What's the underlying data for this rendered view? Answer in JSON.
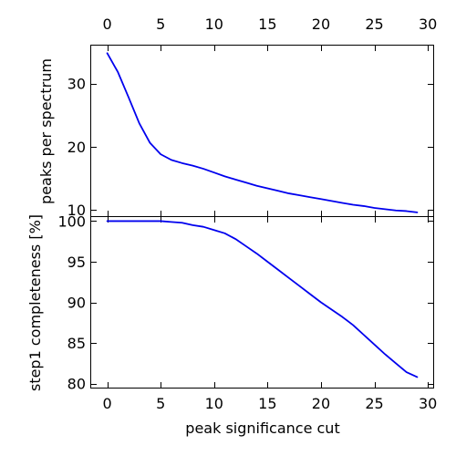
{
  "chart_data": [
    {
      "type": "line",
      "xlabel": "",
      "ylabel": "peaks per spectrum",
      "xlim": [
        -1.5,
        30.5
      ],
      "ylim": [
        9.0,
        36.0
      ],
      "xticks": [
        0,
        5,
        10,
        15,
        20,
        25,
        30
      ],
      "yticks": [
        10,
        20,
        30
      ],
      "xtick_labels_position": "top",
      "color": "#0000ee",
      "x": [
        0,
        1,
        2,
        3,
        4,
        5,
        6,
        7,
        8,
        9,
        10,
        11,
        12,
        13,
        14,
        15,
        16,
        17,
        18,
        19,
        20,
        21,
        22,
        23,
        24,
        25,
        26,
        27,
        28,
        29
      ],
      "y": [
        34.8,
        31.8,
        27.8,
        23.7,
        20.6,
        18.8,
        17.9,
        17.4,
        17.0,
        16.5,
        15.9,
        15.3,
        14.8,
        14.3,
        13.8,
        13.4,
        13.0,
        12.6,
        12.3,
        12.0,
        11.7,
        11.4,
        11.1,
        10.8,
        10.6,
        10.3,
        10.1,
        9.9,
        9.8,
        9.6
      ]
    },
    {
      "type": "line",
      "xlabel": "peak significance cut",
      "ylabel": "step1 completeness [%]",
      "xlim": [
        -1.5,
        30.5
      ],
      "ylim": [
        79.5,
        100.5
      ],
      "xticks": [
        0,
        5,
        10,
        15,
        20,
        25,
        30
      ],
      "yticks": [
        80,
        85,
        90,
        95,
        100
      ],
      "xtick_labels_position": "bottom",
      "color": "#0000ee",
      "x": [
        0,
        1,
        2,
        3,
        4,
        5,
        6,
        7,
        8,
        9,
        10,
        11,
        12,
        13,
        14,
        15,
        16,
        17,
        18,
        19,
        20,
        21,
        22,
        23,
        24,
        25,
        26,
        27,
        28,
        29
      ],
      "y": [
        100.0,
        100.0,
        100.0,
        100.0,
        100.0,
        100.0,
        99.9,
        99.8,
        99.5,
        99.3,
        98.9,
        98.5,
        97.8,
        96.9,
        96.0,
        95.0,
        94.0,
        93.0,
        92.0,
        91.0,
        90.0,
        89.1,
        88.2,
        87.2,
        86.0,
        84.8,
        83.6,
        82.5,
        81.4,
        80.8
      ]
    }
  ]
}
